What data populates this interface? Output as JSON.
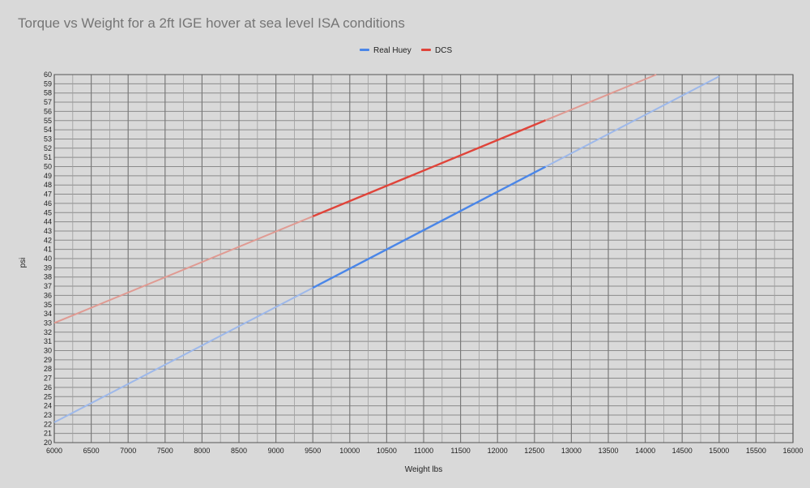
{
  "chart_data": {
    "type": "line",
    "title": "Torque vs Weight for a 2ft IGE hover at sea level ISA conditions",
    "xlabel": "Weight lbs",
    "ylabel": "psi",
    "xlim": [
      6000,
      16000
    ],
    "ylim": [
      20,
      60
    ],
    "x_ticks": [
      6000,
      6500,
      7000,
      7500,
      8000,
      8500,
      9000,
      9500,
      10000,
      10500,
      11000,
      11500,
      12000,
      12500,
      13000,
      13500,
      14000,
      14500,
      15000,
      15500,
      16000
    ],
    "y_ticks": [
      20,
      21,
      22,
      23,
      24,
      25,
      26,
      27,
      28,
      29,
      30,
      31,
      32,
      33,
      34,
      35,
      36,
      37,
      38,
      39,
      40,
      41,
      42,
      43,
      44,
      45,
      46,
      47,
      48,
      49,
      50,
      51,
      52,
      53,
      54,
      55,
      56,
      57,
      58,
      59,
      60
    ],
    "grid": true,
    "legend_position": "top-center",
    "series": [
      {
        "name": "Real Huey",
        "color": "#4a86e8",
        "faded_color": "#9db8ea",
        "x": [
          6000,
          15000
        ],
        "values": [
          22.2,
          59.8
        ],
        "solid_range": [
          9500,
          12650
        ]
      },
      {
        "name": "DCS",
        "color": "#e0443a",
        "faded_color": "#e09a92",
        "x": [
          6000,
          14150
        ],
        "values": [
          33.0,
          60.0
        ],
        "solid_range": [
          9500,
          12650
        ]
      }
    ]
  }
}
